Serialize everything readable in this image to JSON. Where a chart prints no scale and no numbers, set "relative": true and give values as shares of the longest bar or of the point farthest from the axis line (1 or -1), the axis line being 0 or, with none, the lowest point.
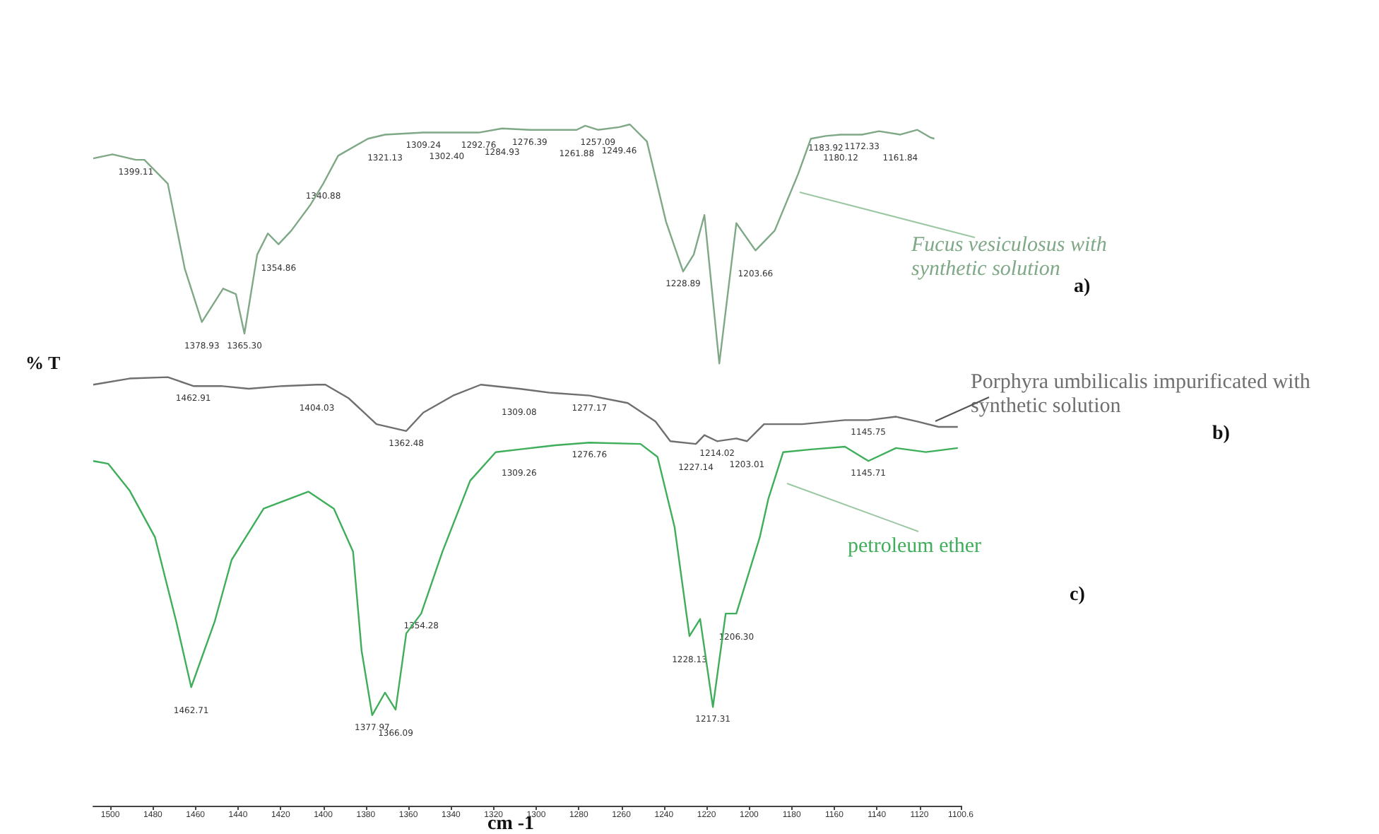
{
  "chart_data": {
    "type": "line",
    "relative": true,
    "xlabel": "cm -1",
    "ylabel": "% T",
    "xlim": [
      1508,
      1100.6
    ],
    "xticks": [
      1500,
      1480,
      1460,
      1440,
      1420,
      1400,
      1380,
      1360,
      1340,
      1320,
      1300,
      1280,
      1260,
      1240,
      1220,
      1200,
      1180,
      1160,
      1140,
      1120,
      1100.6
    ],
    "marker": "none",
    "legend": false,
    "grid": false,
    "series": [
      {
        "name": "Fucus vesiculosus with synthetic solution",
        "color": "#7fa886",
        "x": [
          1508,
          1499,
          1488,
          1484,
          1473,
          1465,
          1457,
          1447,
          1441,
          1437,
          1431,
          1426,
          1421,
          1415,
          1406,
          1400,
          1393,
          1379,
          1371,
          1353,
          1342,
          1327,
          1316,
          1303,
          1281,
          1277,
          1271,
          1261,
          1256,
          1248,
          1239,
          1231,
          1226,
          1221,
          1214,
          1206,
          1197,
          1188,
          1177,
          1171,
          1164,
          1157,
          1147,
          1139,
          1129,
          1121,
          1115,
          1113
        ],
        "values": [
          0.95,
          0.956,
          0.948,
          0.948,
          0.913,
          0.788,
          0.71,
          0.759,
          0.751,
          0.693,
          0.809,
          0.84,
          0.824,
          0.844,
          0.882,
          0.913,
          0.954,
          0.979,
          0.985,
          0.988,
          0.988,
          0.988,
          0.994,
          0.992,
          0.992,
          0.998,
          0.992,
          0.996,
          1,
          0.975,
          0.857,
          0.784,
          0.809,
          0.867,
          0.649,
          0.855,
          0.815,
          0.844,
          0.927,
          0.979,
          0.983,
          0.985,
          0.985,
          0.99,
          0.985,
          0.992,
          0.981,
          0.979
        ]
      },
      {
        "name": "Porphyra umbilicalis impurificated with synthetic solution",
        "color": "#6f6f6f",
        "x": [
          1508,
          1491,
          1473,
          1461,
          1448,
          1435,
          1419,
          1403,
          1399,
          1388,
          1375,
          1361,
          1353,
          1339,
          1326,
          1308,
          1293,
          1275,
          1257,
          1244,
          1237,
          1225,
          1221,
          1215,
          1206,
          1201,
          1193,
          1175,
          1155,
          1144,
          1131,
          1121,
          1111,
          1102
        ],
        "values": [
          0.618,
          0.627,
          0.629,
          0.616,
          0.616,
          0.612,
          0.616,
          0.618,
          0.618,
          0.598,
          0.56,
          0.55,
          0.577,
          0.602,
          0.618,
          0.612,
          0.606,
          0.602,
          0.591,
          0.564,
          0.535,
          0.531,
          0.544,
          0.535,
          0.539,
          0.535,
          0.56,
          0.56,
          0.566,
          0.566,
          0.571,
          0.564,
          0.556,
          0.556
        ]
      },
      {
        "name": "petroleum ether",
        "color": "#3fae5a",
        "x": [
          1508,
          1501,
          1491,
          1479,
          1469,
          1462,
          1451,
          1443,
          1428,
          1407,
          1395,
          1386,
          1382,
          1377,
          1371,
          1366,
          1361,
          1354,
          1344,
          1331,
          1319,
          1308,
          1291,
          1275,
          1251,
          1243,
          1235,
          1228,
          1223,
          1217,
          1211,
          1206,
          1195,
          1191,
          1184,
          1171,
          1155,
          1144,
          1131,
          1117,
          1102
        ],
        "values": [
          0.506,
          0.502,
          0.463,
          0.394,
          0.27,
          0.174,
          0.27,
          0.361,
          0.436,
          0.461,
          0.436,
          0.373,
          0.228,
          0.133,
          0.166,
          0.141,
          0.253,
          0.282,
          0.373,
          0.477,
          0.519,
          0.523,
          0.529,
          0.533,
          0.531,
          0.512,
          0.409,
          0.249,
          0.274,
          0.145,
          0.282,
          0.282,
          0.394,
          0.45,
          0.519,
          0.523,
          0.527,
          0.506,
          0.525,
          0.519,
          0.525
        ]
      }
    ],
    "annotations": [
      "a)",
      "b)",
      "c)",
      {
        "text": "1399.11",
        "x": 1488,
        "y": 0.948
      },
      {
        "text": "1378.93",
        "x": 1457,
        "y": 0.71
      },
      {
        "text": "1365.30",
        "x": 1437,
        "y": 0.693
      },
      {
        "text": "1354.86",
        "x": 1421,
        "y": 0.824
      },
      {
        "text": "1340.88",
        "x": 1400,
        "y": 0.913
      },
      {
        "text": "1321.13",
        "x": 1371,
        "y": 0.985
      },
      {
        "text": "1309.24",
        "x": 1353,
        "y": 0.988
      },
      {
        "text": "1302.40",
        "x": 1342,
        "y": 0.988
      },
      {
        "text": "1292.76",
        "x": 1327,
        "y": 0.988
      },
      {
        "text": "1284.93",
        "x": 1316,
        "y": 0.994
      },
      {
        "text": "1276.39",
        "x": 1303,
        "y": 0.992
      },
      {
        "text": "1261.88",
        "x": 1281,
        "y": 0.992
      },
      {
        "text": "1257.09",
        "x": 1271,
        "y": 0.992
      },
      {
        "text": "1249.46",
        "x": 1261,
        "y": 0.996
      },
      {
        "text": "1228.89",
        "x": 1231,
        "y": 0.784
      },
      {
        "text": "1203.66",
        "x": 1197,
        "y": 0.815
      },
      {
        "text": "1183.92",
        "x": 1164,
        "y": 0.983
      },
      {
        "text": "1180.12",
        "x": 1157,
        "y": 0.985
      },
      {
        "text": "1172.33",
        "x": 1147,
        "y": 0.985
      },
      {
        "text": "1161.84",
        "x": 1129,
        "y": 0.985
      },
      {
        "text": "1462.91",
        "x": 1461,
        "y": 0.616
      },
      {
        "text": "1404.03",
        "x": 1403,
        "y": 0.618
      },
      {
        "text": "1362.48",
        "x": 1361,
        "y": 0.55
      },
      {
        "text": "1309.08",
        "x": 1308,
        "y": 0.612
      },
      {
        "text": "1277.17",
        "x": 1275,
        "y": 0.602
      },
      {
        "text": "1227.14",
        "x": 1225,
        "y": 0.531
      },
      {
        "text": "1214.02",
        "x": 1215,
        "y": 0.535
      },
      {
        "text": "1203.01",
        "x": 1201,
        "y": 0.535
      },
      {
        "text": "1145.75",
        "x": 1144,
        "y": 0.566
      },
      {
        "text": "1462.71",
        "x": 1462,
        "y": 0.174
      },
      {
        "text": "1377.97",
        "x": 1377,
        "y": 0.133
      },
      {
        "text": "1366.09",
        "x": 1366,
        "y": 0.141
      },
      {
        "text": "1354.28",
        "x": 1354,
        "y": 0.282
      },
      {
        "text": "1309.26",
        "x": 1308,
        "y": 0.523
      },
      {
        "text": "1276.76",
        "x": 1275,
        "y": 0.533
      },
      {
        "text": "1228.13",
        "x": 1228,
        "y": 0.249
      },
      {
        "text": "1217.31",
        "x": 1217,
        "y": 0.145
      },
      {
        "text": "1206.30",
        "x": 1206,
        "y": 0.282
      },
      {
        "text": "1145.71",
        "x": 1144,
        "y": 0.506
      }
    ]
  }
}
